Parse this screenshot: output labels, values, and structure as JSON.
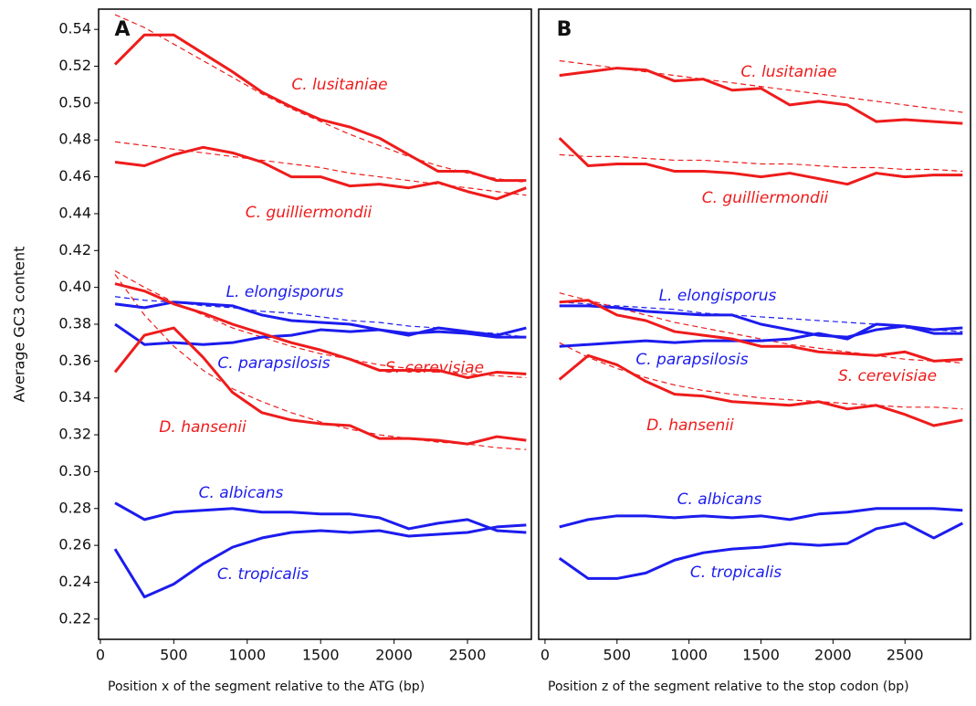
{
  "chart_data": [
    {
      "type": "line",
      "title": "A",
      "ylabel": "Average GC3 content",
      "xlabel": "Position x of the segment relative to the ATG (bp)",
      "xlim": [
        -12,
        2935
      ],
      "ylim": [
        0.209,
        0.551
      ],
      "xticks": [
        0,
        500,
        1000,
        1500,
        2000,
        2500
      ],
      "yticks": [
        0.22,
        0.24,
        0.26,
        0.28,
        {
          "value": 0.3,
          "label": "0.30"
        },
        0.32,
        0.34,
        0.36,
        0.38,
        {
          "value": 0.4,
          "label": "0.40"
        },
        0.42,
        0.44,
        0.46,
        0.48,
        {
          "value": 0.5,
          "label": "0.50"
        },
        0.52,
        0.54
      ],
      "x": [
        100,
        300,
        500,
        700,
        900,
        1100,
        1300,
        1500,
        1700,
        1900,
        2100,
        2300,
        2500,
        2700,
        2900
      ],
      "series": [
        {
          "name": "C. lusitaniae",
          "color": "#ee1c1c",
          "values": [
            0.521,
            0.537,
            0.537,
            0.527,
            0.517,
            0.506,
            0.498,
            0.491,
            0.487,
            0.481,
            0.472,
            0.463,
            0.463,
            0.458,
            0.458
          ]
        },
        {
          "name": "C. guilliermondii",
          "color": "#ee1c1c",
          "values": [
            0.468,
            0.466,
            0.472,
            0.476,
            0.473,
            0.468,
            0.46,
            0.46,
            0.455,
            0.456,
            0.454,
            0.457,
            0.452,
            0.448,
            0.454
          ]
        },
        {
          "name": "L. elongisporus",
          "color": "#1c1cee",
          "values": [
            0.391,
            0.389,
            0.392,
            0.391,
            0.39,
            0.385,
            0.382,
            0.381,
            0.38,
            0.377,
            0.375,
            0.376,
            0.375,
            0.373,
            0.373
          ]
        },
        {
          "name": "C. parapsilosis",
          "color": "#1c1cee",
          "values": [
            0.38,
            0.369,
            0.37,
            0.369,
            0.37,
            0.373,
            0.374,
            0.377,
            0.376,
            0.377,
            0.374,
            0.378,
            0.376,
            0.374,
            0.378
          ]
        },
        {
          "name": "S. cerevisiae",
          "color": "#ee1c1c",
          "values": [
            0.402,
            0.398,
            0.391,
            0.386,
            0.38,
            0.375,
            0.37,
            0.366,
            0.361,
            0.355,
            0.355,
            0.355,
            0.351,
            0.354,
            0.353
          ]
        },
        {
          "name": "D. hansenii",
          "color": "#ee1c1c",
          "values": [
            0.354,
            0.374,
            0.378,
            0.362,
            0.343,
            0.332,
            0.328,
            0.326,
            0.325,
            0.318,
            0.318,
            0.317,
            0.315,
            0.319,
            0.317
          ]
        },
        {
          "name": "C. albicans",
          "color": "#1c1cee",
          "values": [
            0.283,
            0.274,
            0.278,
            0.279,
            0.28,
            0.278,
            0.278,
            0.277,
            0.277,
            0.275,
            0.269,
            0.272,
            0.274,
            0.268,
            0.267
          ]
        },
        {
          "name": "C. tropicalis",
          "color": "#1c1cee",
          "values": [
            0.258,
            0.232,
            0.239,
            0.25,
            0.259,
            0.264,
            0.267,
            0.268,
            0.267,
            0.268,
            0.265,
            0.266,
            0.267,
            0.27,
            0.271
          ]
        }
      ],
      "fits": [
        {
          "color": "#ee1c1c",
          "values": [
            0.548,
            0.541,
            0.532,
            0.523,
            0.514,
            0.505,
            0.497,
            0.49,
            0.483,
            0.477,
            0.471,
            0.466,
            0.462,
            0.459,
            0.457
          ]
        },
        {
          "color": "#ee1c1c",
          "values": [
            0.479,
            0.477,
            0.475,
            0.473,
            0.471,
            0.469,
            0.467,
            0.465,
            0.462,
            0.46,
            0.458,
            0.456,
            0.454,
            0.452,
            0.45
          ]
        },
        {
          "color": "#1c1cee",
          "values": [
            0.395,
            0.393,
            0.392,
            0.39,
            0.389,
            0.387,
            0.386,
            0.384,
            0.382,
            0.381,
            0.379,
            0.378,
            0.376,
            0.375,
            0.373
          ]
        },
        {
          "color": "#ee1c1c",
          "values": [
            0.409,
            0.4,
            0.392,
            0.385,
            0.378,
            0.373,
            0.368,
            0.364,
            0.361,
            0.358,
            0.356,
            0.354,
            0.353,
            0.352,
            0.351
          ]
        },
        {
          "color": "#ee1c1c",
          "values": [
            0.407,
            0.385,
            0.368,
            0.355,
            0.345,
            0.338,
            0.332,
            0.327,
            0.323,
            0.32,
            0.318,
            0.316,
            0.315,
            0.313,
            0.312
          ]
        }
      ]
    },
    {
      "type": "line",
      "title": "B",
      "xlabel": "Position z of the segment relative to the stop codon (bp)",
      "xlim": [
        -44,
        2955
      ],
      "ylim": [
        0.209,
        0.551
      ],
      "xticks": [
        0,
        500,
        1000,
        1500,
        2000,
        2500
      ],
      "x": [
        100,
        300,
        500,
        700,
        900,
        1100,
        1300,
        1500,
        1700,
        1900,
        2100,
        2300,
        2500,
        2700,
        2900
      ],
      "series": [
        {
          "name": "C. lusitaniae",
          "color": "#ee1c1c",
          "values": [
            0.515,
            0.517,
            0.519,
            0.518,
            0.512,
            0.513,
            0.507,
            0.508,
            0.499,
            0.501,
            0.499,
            0.49,
            0.491,
            0.49,
            0.489
          ]
        },
        {
          "name": "C. guilliermondii",
          "color": "#ee1c1c",
          "values": [
            0.481,
            0.466,
            0.467,
            0.467,
            0.463,
            0.463,
            0.462,
            0.46,
            0.462,
            0.459,
            0.456,
            0.462,
            0.46,
            0.461,
            0.461
          ]
        },
        {
          "name": "L. elongisporus",
          "color": "#1c1cee",
          "values": [
            0.39,
            0.39,
            0.389,
            0.387,
            0.386,
            0.385,
            0.385,
            0.38,
            0.377,
            0.374,
            0.373,
            0.377,
            0.379,
            0.375,
            0.375
          ]
        },
        {
          "name": "C. parapsilosis",
          "color": "#1c1cee",
          "values": [
            0.368,
            0.369,
            0.37,
            0.371,
            0.37,
            0.371,
            0.371,
            0.371,
            0.372,
            0.375,
            0.372,
            0.38,
            0.379,
            0.377,
            0.378
          ]
        },
        {
          "name": "S. cerevisiae",
          "color": "#ee1c1c",
          "values": [
            0.392,
            0.393,
            0.385,
            0.382,
            0.376,
            0.374,
            0.372,
            0.368,
            0.368,
            0.365,
            0.364,
            0.363,
            0.365,
            0.36,
            0.361
          ]
        },
        {
          "name": "D. hansenii",
          "color": "#ee1c1c",
          "values": [
            0.35,
            0.363,
            0.358,
            0.349,
            0.342,
            0.341,
            0.338,
            0.337,
            0.336,
            0.338,
            0.334,
            0.336,
            0.331,
            0.325,
            0.328
          ]
        },
        {
          "name": "C. albicans",
          "color": "#1c1cee",
          "values": [
            0.27,
            0.274,
            0.276,
            0.276,
            0.275,
            0.276,
            0.275,
            0.276,
            0.274,
            0.277,
            0.278,
            0.28,
            0.28,
            0.28,
            0.279
          ]
        },
        {
          "name": "C. tropicalis",
          "color": "#1c1cee",
          "values": [
            0.253,
            0.242,
            0.242,
            0.245,
            0.252,
            0.256,
            0.258,
            0.259,
            0.261,
            0.26,
            0.261,
            0.269,
            0.272,
            0.264,
            0.272
          ]
        }
      ],
      "fits": [
        {
          "color": "#ee1c1c",
          "values": [
            0.523,
            0.521,
            0.519,
            0.517,
            0.515,
            0.513,
            0.511,
            0.509,
            0.507,
            0.505,
            0.503,
            0.501,
            0.499,
            0.497,
            0.495
          ]
        },
        {
          "color": "#ee1c1c",
          "values": [
            0.472,
            0.471,
            0.471,
            0.47,
            0.469,
            0.469,
            0.468,
            0.467,
            0.467,
            0.466,
            0.465,
            0.465,
            0.464,
            0.464,
            0.463
          ]
        },
        {
          "color": "#1c1cee",
          "values": [
            0.392,
            0.391,
            0.39,
            0.389,
            0.388,
            0.386,
            0.385,
            0.384,
            0.383,
            0.382,
            0.381,
            0.38,
            0.378,
            0.377,
            0.376
          ]
        },
        {
          "color": "#ee1c1c",
          "values": [
            0.397,
            0.393,
            0.389,
            0.385,
            0.381,
            0.378,
            0.375,
            0.372,
            0.369,
            0.367,
            0.365,
            0.363,
            0.361,
            0.36,
            0.359
          ]
        },
        {
          "color": "#ee1c1c",
          "values": [
            0.37,
            0.362,
            0.356,
            0.351,
            0.347,
            0.344,
            0.342,
            0.34,
            0.339,
            0.338,
            0.337,
            0.336,
            0.335,
            0.335,
            0.334
          ]
        }
      ]
    }
  ]
}
